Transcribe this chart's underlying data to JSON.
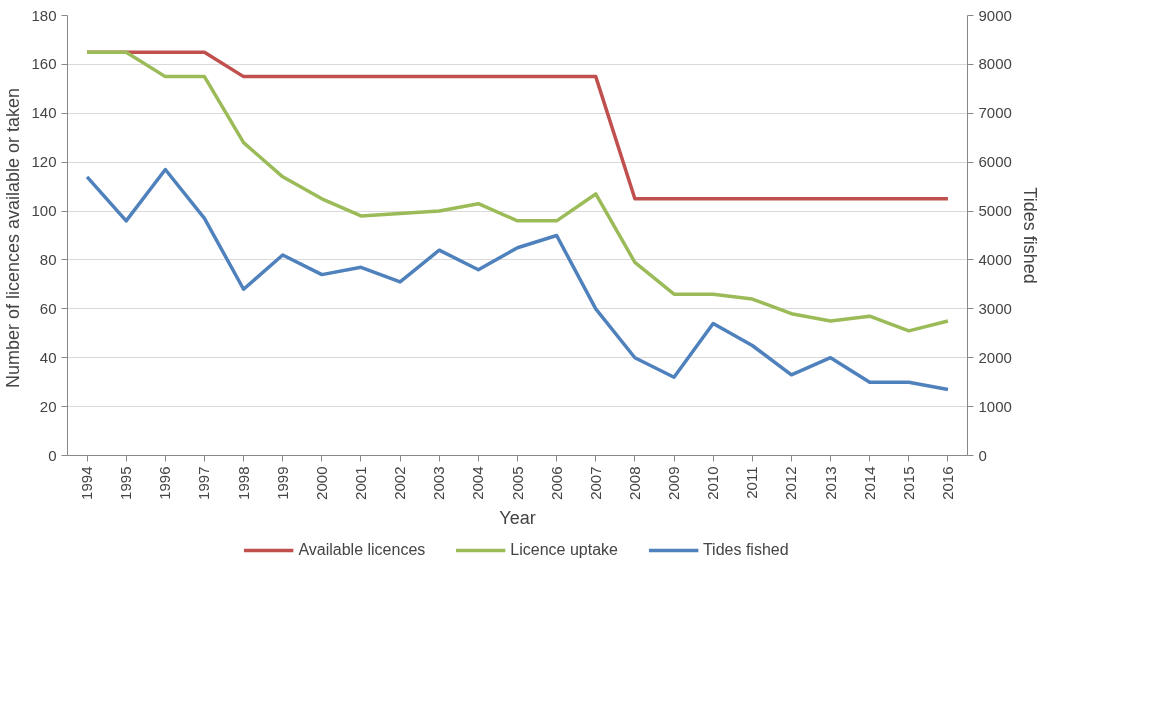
{
  "chart_data": {
    "type": "line",
    "xlabel": "Year",
    "ylabel": "Number of licences available  or taken",
    "y2label": "Tides fished",
    "categories": [
      "1994",
      "1995",
      "1996",
      "1997",
      "1998",
      "1999",
      "2000",
      "2001",
      "2002",
      "2003",
      "2004",
      "2005",
      "2006",
      "2007",
      "2008",
      "2009",
      "2010",
      "2011",
      "2012",
      "2013",
      "2014",
      "2015",
      "2016"
    ],
    "series": [
      {
        "name": "Available licences",
        "color": "#c0504d",
        "values": [
          165,
          165,
          165,
          165,
          155,
          155,
          155,
          155,
          155,
          155,
          155,
          155,
          155,
          155,
          105,
          105,
          105,
          105,
          105,
          105,
          105,
          105,
          105
        ]
      },
      {
        "name": "Licence uptake",
        "color": "#9bbb59",
        "values": [
          165,
          165,
          155,
          155,
          128,
          114,
          105,
          98,
          99,
          100,
          103,
          96,
          96,
          107,
          79,
          66,
          66,
          64,
          58,
          55,
          57,
          51,
          55
        ]
      },
      {
        "name": "Tides fished",
        "color": "#4f81bd",
        "axis": "y2",
        "values": [
          5700,
          4800,
          5850,
          4850,
          3400,
          4100,
          3700,
          3850,
          3550,
          4200,
          3800,
          4250,
          4500,
          3000,
          2000,
          1600,
          2700,
          2250,
          1650,
          2000,
          1500,
          1500,
          1350
        ]
      }
    ],
    "ylim": [
      0,
      180
    ],
    "yticks": [
      0,
      20,
      40,
      60,
      80,
      100,
      120,
      140,
      160,
      180
    ],
    "y2lim": [
      0,
      9000
    ],
    "y2ticks": [
      0,
      1000,
      2000,
      3000,
      4000,
      5000,
      6000,
      7000,
      8000,
      9000
    ],
    "grid": "y",
    "legend": "bottom",
    "line_style": "solid"
  }
}
